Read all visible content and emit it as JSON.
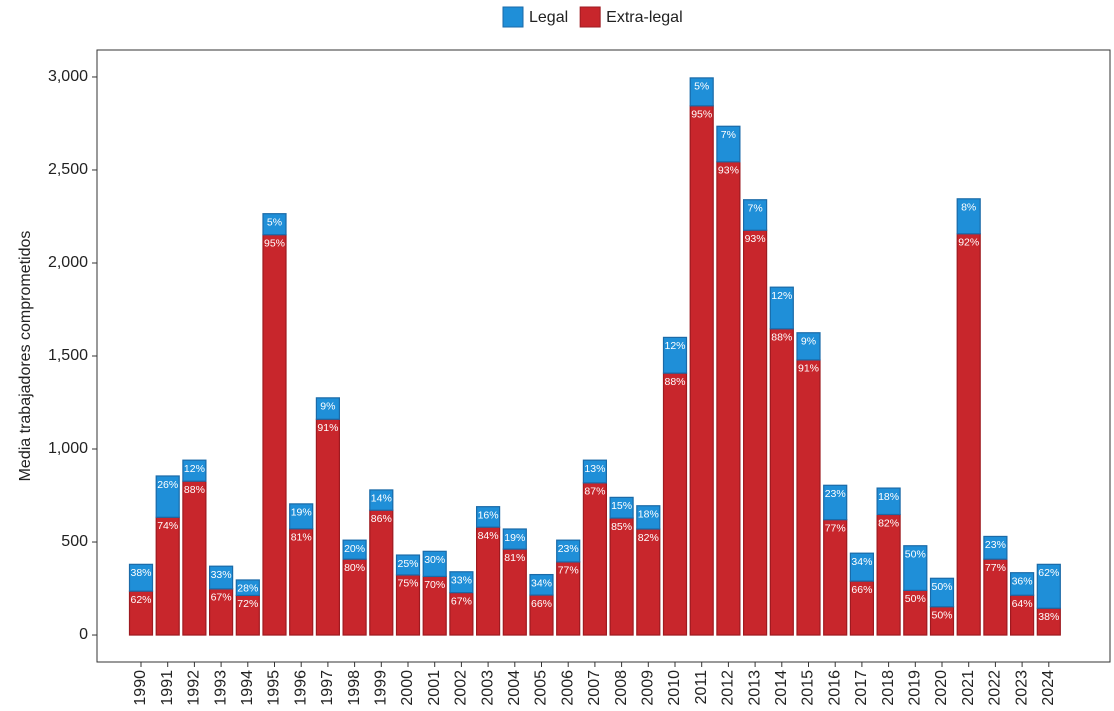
{
  "chart_data": {
    "type": "stacked_bar",
    "ylabel": "Media trabajadores comprometidos",
    "categories": [
      "1990",
      "1991",
      "1992",
      "1993",
      "1994",
      "1995",
      "1996",
      "1997",
      "1998",
      "1999",
      "2000",
      "2001",
      "2002",
      "2003",
      "2004",
      "2005",
      "2006",
      "2007",
      "2008",
      "2009",
      "2010",
      "2011",
      "2012",
      "2013",
      "2014",
      "2015",
      "2016",
      "2017",
      "2018",
      "2019",
      "2020",
      "2021",
      "2022",
      "2023",
      "2024"
    ],
    "series": [
      {
        "name": "Legal",
        "color": "#1f8fd8",
        "edge": "#1a6aa8",
        "values": [
          144,
          222,
          113,
          122,
          83,
          113,
          134,
          115,
          102,
          109,
          107,
          135,
          112,
          110,
          108,
          110,
          117,
          122,
          111,
          125,
          192,
          150,
          191,
          164,
          224,
          146,
          185,
          150,
          142,
          240,
          153,
          188,
          122,
          121,
          236
        ],
        "share_labels": [
          "38%",
          "26%",
          "12%",
          "33%",
          "28%",
          "5%",
          "19%",
          "9%",
          "20%",
          "14%",
          "25%",
          "30%",
          "33%",
          "16%",
          "19%",
          "34%",
          "23%",
          "13%",
          "15%",
          "18%",
          "12%",
          "5%",
          "7%",
          "7%",
          "12%",
          "9%",
          "23%",
          "34%",
          "18%",
          "50%",
          "50%",
          "8%",
          "23%",
          "36%",
          "62%"
        ]
      },
      {
        "name": "Extra-legal",
        "color": "#c8262c",
        "edge": "#9e1a20",
        "values": [
          236,
          633,
          827,
          248,
          213,
          2152,
          571,
          1160,
          408,
          671,
          323,
          315,
          228,
          580,
          462,
          215,
          393,
          818,
          629,
          570,
          1408,
          2845,
          2544,
          2176,
          1646,
          1479,
          620,
          290,
          648,
          240,
          152,
          2157,
          408,
          214,
          144
        ],
        "share_labels": [
          "62%",
          "74%",
          "88%",
          "67%",
          "72%",
          "95%",
          "81%",
          "91%",
          "80%",
          "86%",
          "75%",
          "70%",
          "67%",
          "84%",
          "81%",
          "66%",
          "77%",
          "87%",
          "85%",
          "82%",
          "88%",
          "95%",
          "93%",
          "93%",
          "88%",
          "91%",
          "77%",
          "66%",
          "82%",
          "50%",
          "50%",
          "92%",
          "77%",
          "64%",
          "38%"
        ]
      }
    ],
    "ylim": [
      -145,
      3145
    ],
    "yticks": [
      0,
      500,
      {
        "value": 1000,
        "label": "1,000"
      },
      {
        "value": 1500,
        "label": "1,500"
      },
      {
        "value": 2000,
        "label": "2,000"
      },
      {
        "value": 2500,
        "label": "2,500"
      },
      {
        "value": 3000,
        "label": "3,000"
      }
    ]
  }
}
